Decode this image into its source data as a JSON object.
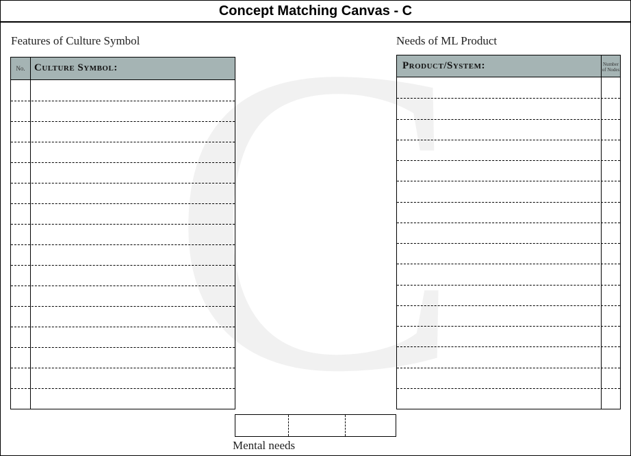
{
  "title": "Concept Matching Canvas - C",
  "watermark_letter": "C",
  "left_panel": {
    "section_label": "Features of Culture Symbol",
    "no_header": "No.",
    "symbol_header": "Culture Symbol:",
    "row_count": 16
  },
  "right_panel": {
    "section_label": "Needs of ML Product",
    "product_header": "Product/System:",
    "nodes_header": "Number of Nodes",
    "row_count": 16
  },
  "mental_needs": {
    "label": "Mental needs",
    "cells": [
      "",
      "",
      ""
    ]
  },
  "colors": {
    "header_fill": "#a5b4b4",
    "watermark": "#f1f1f1"
  }
}
